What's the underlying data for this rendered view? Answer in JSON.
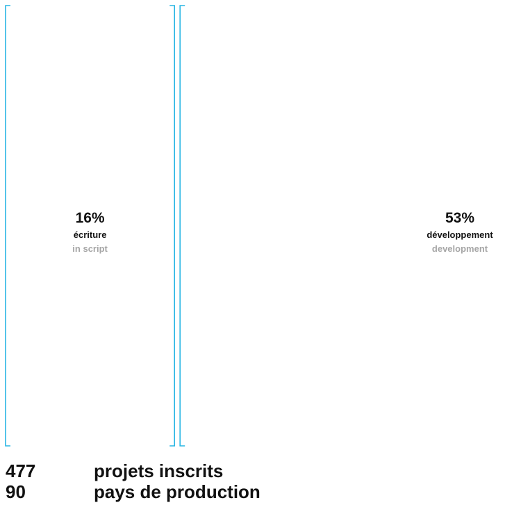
{
  "chart_data": {
    "type": "bar",
    "categories": [
      "écriture",
      "développement"
    ],
    "category_labels_en": [
      "in script",
      "development"
    ],
    "values": [
      16,
      53
    ],
    "value_labels": [
      "16%",
      "53%"
    ],
    "unit": "%",
    "bracket_color": "#29b6e4",
    "fr_label_color": "#111111",
    "en_label_color": "#a6a6a6"
  },
  "stats": [
    {
      "number": "477",
      "label": "projets inscrits"
    },
    {
      "number": "90",
      "label": "pays de production"
    }
  ]
}
